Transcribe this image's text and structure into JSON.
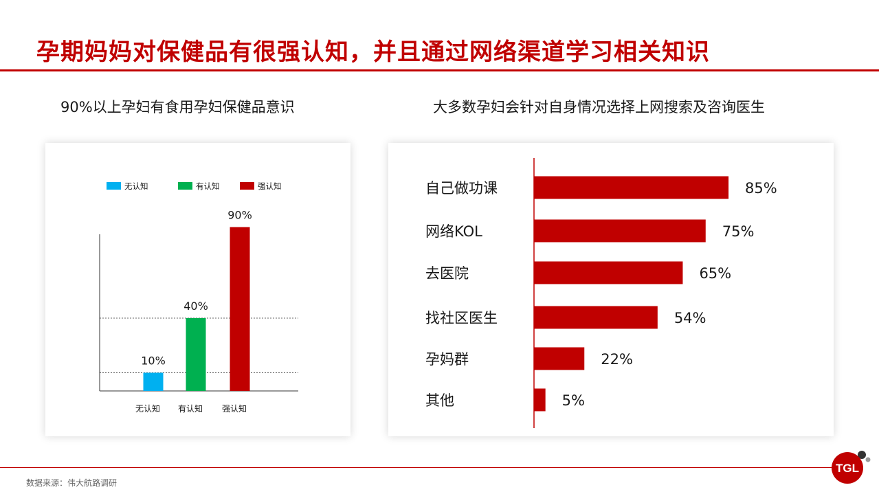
{
  "header": {
    "title": "孕期妈妈对保健品有很强认知，并且通过网络渠道学习相关知识"
  },
  "footer": {
    "source": "数据来源：伟大航路调研",
    "logo_text": "TGL"
  },
  "colors": {
    "brand_red": "#c00000",
    "blue": "#00b0f0",
    "green": "#00b050"
  },
  "chart_data": [
    {
      "type": "bar",
      "title": "90%以上孕妇有食用孕妇保健品意识",
      "categories": [
        "无认知",
        "有认知",
        "强认知"
      ],
      "series": [
        {
          "name": "无认知",
          "values": [
            10,
            null,
            null
          ]
        },
        {
          "name": "有认知",
          "values": [
            null,
            40,
            null
          ]
        },
        {
          "name": "强认知",
          "values": [
            null,
            null,
            90
          ]
        }
      ],
      "data_labels": [
        "10%",
        "40%",
        "90%"
      ],
      "colors": [
        "#00b0f0",
        "#00b050",
        "#c00000"
      ],
      "ylim": [
        0,
        100
      ],
      "reference_lines": [
        10,
        40
      ],
      "legend": "top",
      "grid": false
    },
    {
      "type": "bar",
      "orientation": "horizontal",
      "title": "大多数孕妇会针对自身情况选择上网搜索及咨询医生",
      "categories": [
        "自己做功课",
        "网络KOL",
        "去医院",
        "找社区医生",
        "孕妈群",
        "其他"
      ],
      "values": [
        85,
        75,
        65,
        54,
        22,
        5
      ],
      "data_labels": [
        "85%",
        "75%",
        "65%",
        "54%",
        "22%",
        "5%"
      ],
      "color": "#c00000",
      "xlim": [
        0,
        100
      ],
      "legend": "none",
      "grid": false
    }
  ]
}
